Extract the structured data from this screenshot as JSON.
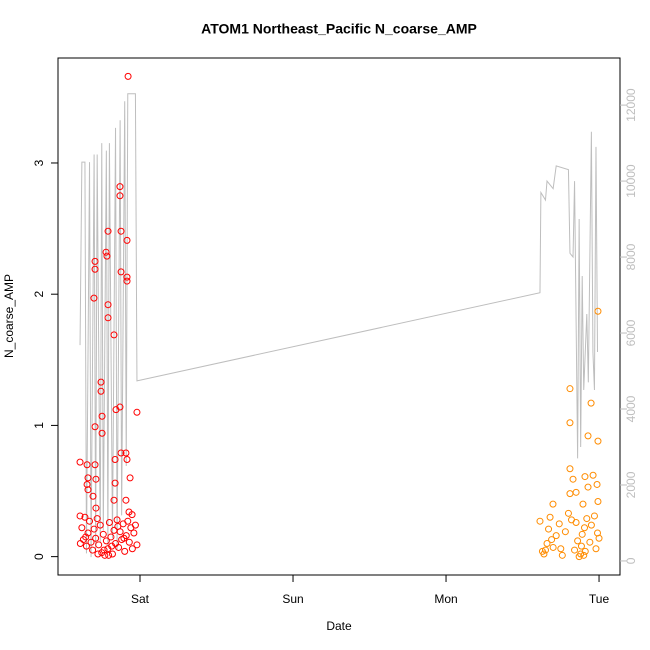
{
  "chart_data": {
    "type": "scatter",
    "title": "ATOM1 Northeast_Pacific N_coarse_AMP",
    "x_label": "Date",
    "y_label": "N_coarse_AMP",
    "xlim": [
      0.464,
      4.137
    ],
    "xticks": [
      {
        "value": 1,
        "label": "Sat"
      },
      {
        "value": 2,
        "label": "Sun"
      },
      {
        "value": 3,
        "label": "Mon"
      },
      {
        "value": 4,
        "label": "Tue"
      }
    ],
    "ylim": [
      -0.14,
      3.8
    ],
    "yticks": [
      0,
      1,
      2,
      3
    ],
    "y2lim": [
      -370,
      13240
    ],
    "y2ticks": [
      0,
      2000,
      4000,
      6000,
      8000,
      10000,
      12000
    ],
    "y2_color": "#bebebe",
    "series": [
      {
        "type": "line",
        "axis": "y2",
        "color": "#bebebe",
        "x": [
          0.608,
          0.62,
          0.64,
          0.65,
          0.67,
          0.68,
          0.7,
          0.71,
          0.72,
          0.74,
          0.75,
          0.76,
          0.78,
          0.79,
          0.8,
          0.82,
          0.84,
          0.85,
          0.87,
          0.88,
          0.9,
          0.91,
          0.92,
          0.97,
          0.98,
          3.614,
          3.62,
          3.65,
          3.66,
          3.7,
          3.72,
          3.8,
          3.81,
          3.83,
          3.84,
          3.86,
          3.87,
          3.88,
          3.89,
          3.9,
          3.92,
          3.93,
          3.95,
          3.96,
          3.97,
          3.98,
          3.99
        ],
        "values": [
          5680,
          10500,
          10500,
          200,
          10500,
          100,
          10700,
          300,
          10700,
          500,
          11000,
          800,
          10800,
          400,
          11000,
          600,
          11400,
          300,
          11600,
          1200,
          12100,
          2500,
          12300,
          12300,
          4740,
          7060,
          9700,
          9500,
          10000,
          9800,
          10400,
          10300,
          8100,
          8000,
          10000,
          2700,
          9000,
          3000,
          7500,
          4500,
          6500,
          4700,
          11300,
          5500,
          4500,
          10900,
          5500
        ]
      },
      {
        "type": "scatter",
        "color": "#ff0000",
        "x": [
          0.922,
          0.869,
          0.869,
          0.876,
          0.791,
          0.915,
          0.778,
          0.784,
          0.706,
          0.706,
          0.876,
          0.915,
          0.915,
          0.699,
          0.791,
          0.791,
          0.83,
          0.745,
          0.745,
          0.869,
          0.843,
          0.98,
          0.752,
          0.706,
          0.752,
          0.876,
          0.908,
          0.608,
          0.654,
          0.706,
          0.837,
          0.915,
          0.66,
          0.712,
          0.935,
          0.654,
          0.66,
          0.837,
          0.693,
          0.908,
          0.83,
          0.712,
          0.928,
          0.948,
          0.608,
          0.62,
          0.63,
          0.64,
          0.65,
          0.66,
          0.67,
          0.68,
          0.69,
          0.7,
          0.71,
          0.72,
          0.73,
          0.74,
          0.75,
          0.76,
          0.77,
          0.78,
          0.79,
          0.8,
          0.81,
          0.82,
          0.83,
          0.84,
          0.85,
          0.86,
          0.87,
          0.88,
          0.89,
          0.9,
          0.91,
          0.92,
          0.93,
          0.94,
          0.95,
          0.96,
          0.97,
          0.98,
          0.61,
          0.645,
          0.725,
          0.765,
          0.795,
          0.815,
          0.855,
          0.895
        ],
        "values": [
          3.66,
          2.82,
          2.75,
          2.48,
          2.48,
          2.41,
          2.32,
          2.29,
          2.25,
          2.19,
          2.17,
          2.13,
          2.1,
          1.97,
          1.92,
          1.82,
          1.69,
          1.33,
          1.26,
          1.14,
          1.12,
          1.1,
          1.07,
          0.99,
          0.94,
          0.79,
          0.79,
          0.72,
          0.7,
          0.7,
          0.74,
          0.74,
          0.6,
          0.59,
          0.6,
          0.55,
          0.51,
          0.56,
          0.46,
          0.43,
          0.43,
          0.37,
          0.34,
          0.32,
          0.31,
          0.22,
          0.13,
          0.3,
          0.08,
          0.18,
          0.27,
          0.11,
          0.05,
          0.21,
          0.14,
          0.29,
          0.09,
          0.24,
          0.03,
          0.17,
          0.01,
          0.12,
          0.06,
          0.26,
          0.15,
          0.02,
          0.2,
          0.1,
          0.28,
          0.07,
          0.19,
          0.13,
          0.25,
          0.04,
          0.16,
          0.27,
          0.11,
          0.22,
          0.06,
          0.18,
          0.24,
          0.09,
          0.1,
          0.15,
          0.02,
          0.05,
          0.01,
          0.08,
          0.23,
          0.14
        ]
      },
      {
        "type": "scatter",
        "color": "#ff8c00",
        "x": [
          3.993,
          3.81,
          3.948,
          3.81,
          3.928,
          3.993,
          3.81,
          3.961,
          3.908,
          3.83,
          3.987,
          3.928,
          3.85,
          3.81,
          3.993,
          3.895,
          3.699,
          3.614,
          3.63,
          3.64,
          3.65,
          3.66,
          3.67,
          3.68,
          3.69,
          3.7,
          3.72,
          3.74,
          3.76,
          3.78,
          3.8,
          3.82,
          3.84,
          3.86,
          3.87,
          3.88,
          3.885,
          3.89,
          3.9,
          3.905,
          3.91,
          3.92,
          3.94,
          3.95,
          3.97,
          3.98,
          3.99,
          4.0,
          3.75,
          3.85
        ],
        "values": [
          1.87,
          1.28,
          1.17,
          1.02,
          0.92,
          0.88,
          0.67,
          0.62,
          0.61,
          0.59,
          0.55,
          0.53,
          0.49,
          0.48,
          0.42,
          0.4,
          0.4,
          0.27,
          0.04,
          0.02,
          0.05,
          0.1,
          0.21,
          0.3,
          0.13,
          0.07,
          0.16,
          0.25,
          0.01,
          0.19,
          0.33,
          0.28,
          0.05,
          0.12,
          0.0,
          0.02,
          0.08,
          0.17,
          0.01,
          0.22,
          0.04,
          0.29,
          0.11,
          0.24,
          0.31,
          0.06,
          0.18,
          0.14,
          0.06,
          0.26
        ]
      }
    ]
  }
}
